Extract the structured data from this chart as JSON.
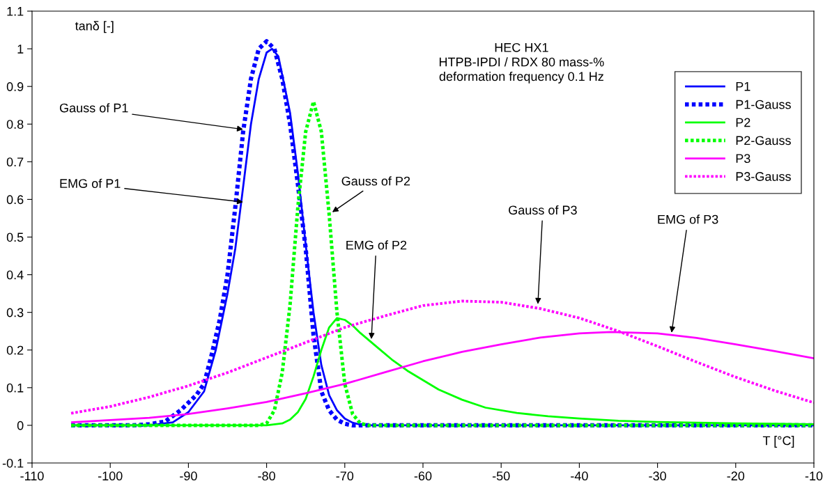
{
  "chart_data": {
    "type": "line",
    "xlabel": "T [°C]",
    "ylabel": "tanδ [-]",
    "xlim": [
      -110,
      -10
    ],
    "xticks": [
      -110,
      -100,
      -90,
      -80,
      -70,
      -60,
      -50,
      -40,
      -30,
      -20,
      -10
    ],
    "ylim": [
      -0.1,
      1.1
    ],
    "yticks": [
      -0.1,
      0,
      0.1,
      0.2,
      0.3,
      0.4,
      0.5,
      0.6,
      0.7,
      0.8,
      0.9,
      1,
      1.1
    ],
    "grid": false,
    "legend": "top right",
    "marker": "none",
    "series": [
      {
        "name": "P1",
        "color": "#0000ff",
        "line_style": "solid",
        "x": [
          -105,
          -95,
          -92,
          -90,
          -88,
          -86.5,
          -85,
          -84,
          -83.2,
          -82,
          -81,
          -80,
          -79.3,
          -78.5,
          -77,
          -76,
          -75,
          -74,
          -73,
          -72,
          -71,
          -70,
          -69,
          -68,
          -67,
          -10
        ],
        "values": [
          0,
          0,
          0.008,
          0.035,
          0.09,
          0.2,
          0.35,
          0.47,
          0.6,
          0.8,
          0.92,
          0.99,
          1.0,
          0.98,
          0.83,
          0.67,
          0.48,
          0.3,
          0.16,
          0.08,
          0.04,
          0.018,
          0.007,
          0.002,
          0,
          0
        ]
      },
      {
        "name": "P1-Gauss",
        "color": "#0000ff",
        "line_style": "dashed",
        "x": [
          -105,
          -97,
          -95,
          -93,
          -91,
          -89,
          -88,
          -87,
          -86,
          -85,
          -84,
          -83,
          -82,
          -81,
          -80,
          -79,
          -78,
          -77,
          -76,
          -75,
          -74,
          -73,
          -72,
          -71,
          -70,
          -69,
          -10
        ],
        "values": [
          0,
          0,
          0.003,
          0.01,
          0.04,
          0.08,
          0.11,
          0.19,
          0.28,
          0.4,
          0.58,
          0.78,
          0.92,
          1.0,
          1.02,
          1.0,
          0.92,
          0.8,
          0.64,
          0.47,
          0.24,
          0.09,
          0.04,
          0.015,
          0.004,
          0,
          0
        ]
      },
      {
        "name": "P2",
        "color": "#00ff00",
        "line_style": "solid",
        "x": [
          -105,
          -80,
          -78,
          -77,
          -76,
          -75,
          -74,
          -73,
          -72,
          -71,
          -70,
          -69,
          -68,
          -66,
          -64,
          -62,
          -60,
          -58,
          -55,
          -52,
          -48,
          -44,
          -40,
          -35,
          -30,
          -25,
          -20,
          -15,
          -10
        ],
        "values": [
          0,
          0,
          0.005,
          0.015,
          0.035,
          0.07,
          0.13,
          0.2,
          0.26,
          0.285,
          0.28,
          0.265,
          0.245,
          0.21,
          0.175,
          0.145,
          0.12,
          0.095,
          0.068,
          0.047,
          0.033,
          0.024,
          0.018,
          0.012,
          0.009,
          0.007,
          0.005,
          0.004,
          0.003
        ]
      },
      {
        "name": "P2-Gauss",
        "color": "#00ff00",
        "line_style": "dashed",
        "x": [
          -105,
          -81,
          -80,
          -79,
          -78,
          -77,
          -76,
          -75,
          -74,
          -73,
          -72,
          -71,
          -70,
          -69,
          -68,
          -67,
          -10
        ],
        "values": [
          0,
          0,
          0.005,
          0.04,
          0.14,
          0.32,
          0.58,
          0.78,
          0.86,
          0.78,
          0.56,
          0.3,
          0.11,
          0.03,
          0.005,
          0,
          0
        ]
      },
      {
        "name": "P3",
        "color": "#ff00ff",
        "line_style": "solid",
        "x": [
          -105,
          -95,
          -90,
          -85,
          -80,
          -75,
          -70,
          -65,
          -60,
          -55,
          -50,
          -45,
          -40,
          -36,
          -30,
          -25,
          -20,
          -15,
          -10
        ],
        "values": [
          0.008,
          0.02,
          0.03,
          0.045,
          0.062,
          0.085,
          0.11,
          0.14,
          0.17,
          0.195,
          0.215,
          0.233,
          0.244,
          0.248,
          0.244,
          0.232,
          0.215,
          0.197,
          0.178
        ]
      },
      {
        "name": "P3-Gauss",
        "color": "#ff00ff",
        "line_style": "dashed",
        "x": [
          -105,
          -100,
          -95,
          -90,
          -85,
          -80,
          -75,
          -70,
          -65,
          -60,
          -55,
          -50,
          -45,
          -40,
          -35,
          -30,
          -25,
          -20,
          -15,
          -10
        ],
        "values": [
          0.032,
          0.05,
          0.075,
          0.105,
          0.14,
          0.18,
          0.22,
          0.26,
          0.29,
          0.318,
          0.33,
          0.327,
          0.31,
          0.285,
          0.25,
          0.21,
          0.168,
          0.128,
          0.092,
          0.06
        ]
      }
    ],
    "annotations": [
      "HEC HX1\nHTPB-IPDI / RDX 80 mass-%\ndeformation frequency 0.1 Hz",
      {
        "text": "Gauss of P1",
        "x": -83,
        "y": 0.786
      },
      {
        "text": "EMG of P1",
        "x": -83,
        "y": 0.593
      },
      {
        "text": "Gauss of P2",
        "x": -71.6,
        "y": 0.566
      },
      {
        "text": "EMG of P2",
        "x": -66.6,
        "y": 0.229
      },
      {
        "text": "Gauss of P3",
        "x": -45.3,
        "y": 0.322
      },
      {
        "text": "EMG of P3",
        "x": -28.2,
        "y": 0.246
      }
    ]
  }
}
